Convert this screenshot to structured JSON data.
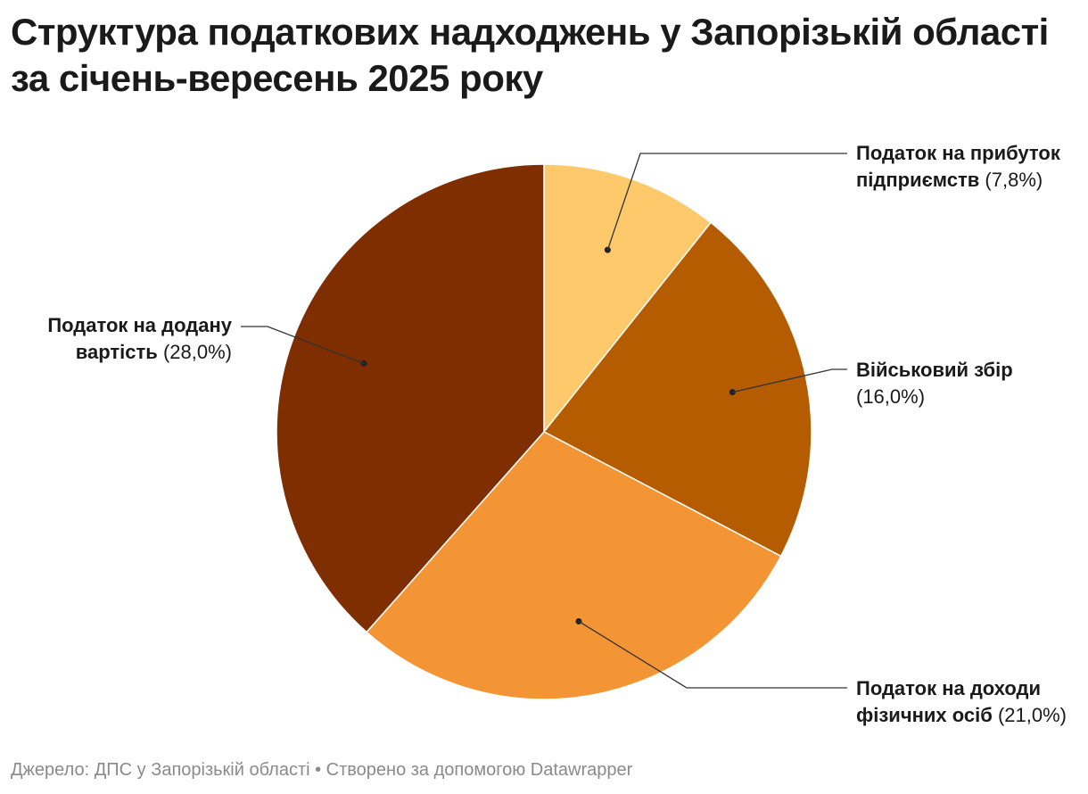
{
  "title_line1": "Структура податкових надходжень у Запорізькій області",
  "title_line2": "за січень-вересень 2025 року",
  "footer": "Джерело: ДПС у Запорізькій області • Створено за допомогою Datawrapper",
  "chart_data": {
    "type": "pie",
    "title": "Структура податкових надходжень у Запорізькій області за січень-вересень 2025 року",
    "slices": [
      {
        "key": "pit",
        "label_line1": "Податок на прибуток",
        "label_line2": "підприємств",
        "percent_text": "(7,8%)",
        "value": 7.8,
        "color": "#fec96b"
      },
      {
        "key": "mil",
        "label_line1": "Військовий збір",
        "label_line2": "",
        "percent_text": "(16,0%)",
        "value": 16.0,
        "color": "#b55c00"
      },
      {
        "key": "pdfo",
        "label_line1": "Податок на доходи",
        "label_line2": "фізичних осіб",
        "percent_text": "(21,0%)",
        "value": 21.0,
        "color": "#f49535"
      },
      {
        "key": "vat",
        "label_line1": "Податок на додану",
        "label_line2": "вартість",
        "percent_text": "(28,0%)",
        "value": 28.0,
        "color": "#7e2e00"
      }
    ]
  }
}
